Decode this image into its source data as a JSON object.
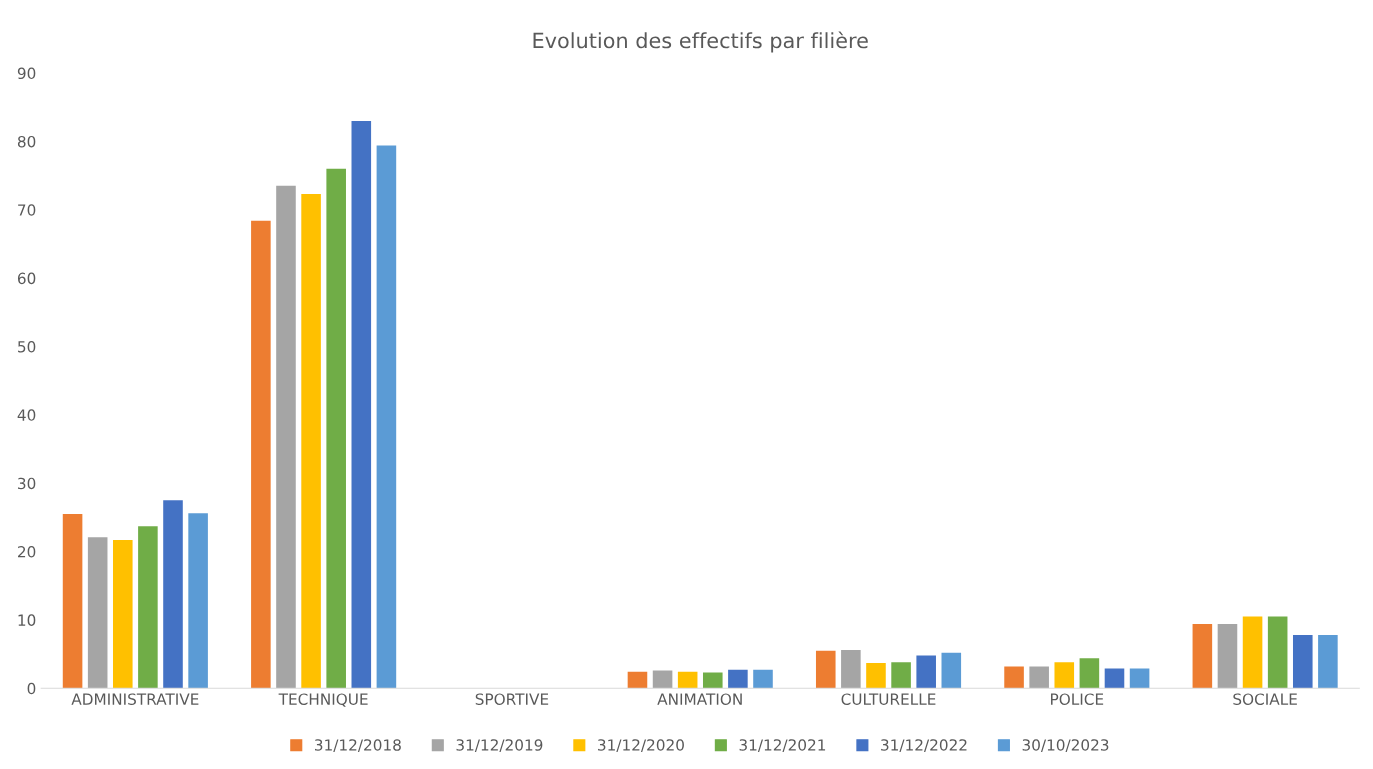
{
  "chart_data": {
    "type": "bar",
    "title": "Evolution des effectifs par filière",
    "categories": [
      "ADMINISTRATIVE",
      "TECHNIQUE",
      "SPORTIVE",
      "ANIMATION",
      "CULTURELLE",
      "POLICE",
      "SOCIALE"
    ],
    "series": [
      {
        "name": "31/12/2018",
        "color": "#ed7d31",
        "values": [
          25.5,
          68.4,
          null,
          2.4,
          5.5,
          3.2,
          9.4
        ]
      },
      {
        "name": "31/12/2019",
        "color": "#a5a5a5",
        "values": [
          22.1,
          73.5,
          null,
          2.6,
          5.6,
          3.2,
          9.4
        ]
      },
      {
        "name": "31/12/2020",
        "color": "#ffc000",
        "values": [
          21.7,
          72.3,
          null,
          2.4,
          3.7,
          3.8,
          10.5
        ]
      },
      {
        "name": "31/12/2021",
        "color": "#70ad47",
        "values": [
          23.7,
          76.0,
          null,
          2.3,
          3.8,
          4.4,
          10.5
        ]
      },
      {
        "name": "31/12/2022",
        "color": "#4472c4",
        "values": [
          27.5,
          83.0,
          null,
          2.7,
          4.8,
          2.9,
          7.8
        ]
      },
      {
        "name": "30/10/2023",
        "color": "#5b9bd5",
        "values": [
          25.6,
          79.4,
          null,
          2.7,
          5.2,
          2.9,
          7.8
        ]
      }
    ],
    "ylim": [
      0,
      90
    ],
    "yticks": [
      0,
      10,
      20,
      30,
      40,
      50,
      60,
      70,
      80,
      90
    ],
    "grid": false,
    "legend": "bottom"
  }
}
